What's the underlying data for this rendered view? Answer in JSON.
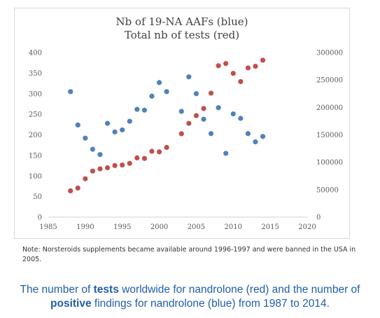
{
  "chart_data": {
    "type": "scatter",
    "title_lines": [
      "Nb of 19-NA AAFs (blue)",
      "Total nb of tests (red)"
    ],
    "x_axis": {
      "range": [
        1985,
        2020
      ],
      "ticks": [
        "1985",
        "1990",
        "1995",
        "2000",
        "2005",
        "2010",
        "2015",
        "2020"
      ]
    },
    "y_left": {
      "range": [
        0,
        400
      ],
      "ticks": [
        "0",
        "50",
        "100",
        "150",
        "200",
        "250",
        "300",
        "350",
        "400"
      ]
    },
    "y_right": {
      "range": [
        0,
        300000
      ],
      "ticks": [
        "0",
        "50000",
        "100000",
        "150000",
        "200000",
        "250000",
        "300000"
      ]
    },
    "grid": false,
    "series": [
      {
        "color": "#4f81bd",
        "axis": "left",
        "x": [
          1988,
          1989,
          1990,
          1991,
          1992,
          1993,
          1994,
          1995,
          1996,
          1997,
          1998,
          1999,
          2000,
          2001,
          2003,
          2004,
          2005,
          2006,
          2007,
          2008,
          2009,
          2010,
          2011,
          2012,
          2013,
          2014
        ],
        "y": [
          305,
          224,
          192,
          165,
          152,
          228,
          207,
          212,
          233,
          262,
          260,
          294,
          327,
          305,
          257,
          341,
          300,
          238,
          203,
          266,
          155,
          251,
          240,
          203,
          183,
          196
        ]
      },
      {
        "color": "#c0504d",
        "axis": "right",
        "x": [
          1988,
          1989,
          1990,
          1991,
          1992,
          1993,
          1994,
          1995,
          1996,
          1997,
          1998,
          1999,
          2000,
          2001,
          2003,
          2004,
          2005,
          2006,
          2007,
          2008,
          2009,
          2010,
          2011,
          2012,
          2013,
          2014
        ],
        "y": [
          48000,
          53000,
          70000,
          84000,
          88000,
          90000,
          94000,
          95000,
          98000,
          108000,
          107000,
          120000,
          119000,
          127000,
          152000,
          171000,
          185000,
          198000,
          226000,
          276000,
          280000,
          262000,
          247000,
          272000,
          275000,
          286000
        ]
      }
    ]
  },
  "note": "Note:  Norsteroids supplements became available around 1996-1997 and were banned in the USA in 2005.",
  "caption": {
    "p1": "The number of ",
    "b1": "tests",
    "p2": " worldwide for nandrolone (red) and the number of ",
    "b2": "positive",
    "p3": " findings for nandrolone (blue) from 1987 to 2014."
  }
}
